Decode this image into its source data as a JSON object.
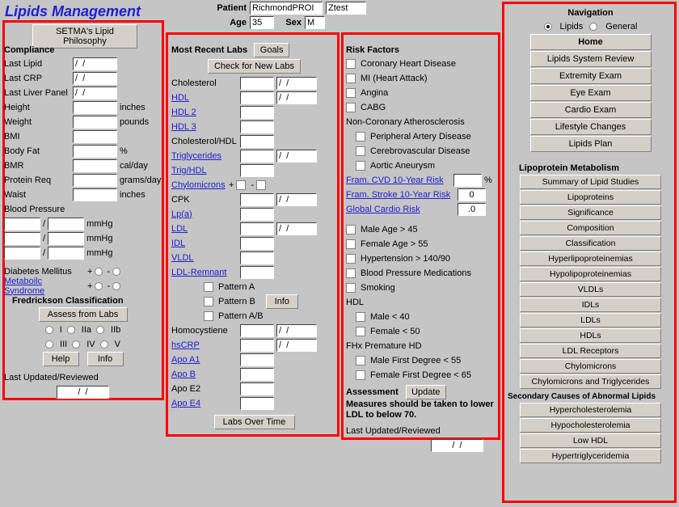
{
  "title": "Lipids Management",
  "patient": {
    "label": "Patient",
    "last": "RichmondPROI",
    "first": "Ztest",
    "ageLbl": "Age",
    "age": "35",
    "sexLbl": "Sex",
    "sex": "M"
  },
  "philosophyBtn": "SETMA's Lipid Philosophy",
  "compliance": {
    "h": "Compliance",
    "lastLipid": "Last Lipid",
    "lastLipidV": "/  /",
    "lastCRP": "Last CRP",
    "lastCRPV": "/  /",
    "lastLiver": "Last Liver Panel",
    "lastLiverV": "/  /",
    "height": "Height",
    "heightU": "inches",
    "weight": "Weight",
    "weightU": "pounds",
    "bmi": "BMI",
    "bodyFat": "Body Fat",
    "bodyFatU": "%",
    "bmr": "BMR",
    "bmrU": "cal/day",
    "protein": "Protein Req",
    "proteinU": "grams/day",
    "waist": "Waist",
    "waistU": "inches",
    "bp": "Blood Pressure",
    "bpU": "mmHg",
    "dm": "Diabetes Mellitus",
    "ms": "Metaboilc Syndrome",
    "fred": "Fredrickson Classification",
    "assess": "Assess from Labs",
    "f1": "I",
    "f2": "IIa",
    "f3": "IIb",
    "f4": "III",
    "f5": "IV",
    "f6": "V",
    "help": "Help",
    "info": "Info",
    "lur": "Last Updated/Reviewed",
    "lurV": "/  /"
  },
  "labs": {
    "h": "Most Recent Labs",
    "goals": "Goals",
    "check": "Check for New Labs",
    "chol": "Cholesterol",
    "hdl": "HDL",
    "hdl2": "HDL 2",
    "hdl3": "HDL 3",
    "cholhdl": "Cholesterol/HDL",
    "trig": "Triglycerides",
    "trighdl": "Trig/HDL",
    "chylo": "Chylomicrons",
    "cpk": "CPK",
    "lpa": "Lp(a)",
    "ldl": "LDL",
    "idl": "IDL",
    "vldl": "VLDL",
    "ldlr": "LDL-Remnant",
    "pA": "Pattern A",
    "pB": "Pattern B",
    "pAB": "Pattern A/B",
    "info": "Info",
    "homo": "Homocystiene",
    "hscrp": "hsCRP",
    "apoa1": "Apo A1",
    "apob": "Apo B",
    "apoe2": "Apo E2",
    "apoe4": "Apo E4",
    "over": "Labs Over Time",
    "dateV": "/  /"
  },
  "risk": {
    "h": "Risk Factors",
    "chd": "Coronary Heart Disease",
    "mi": "MI (Heart Attack)",
    "ang": "Angina",
    "cabg": "CABG",
    "nca": "Non-Coronary Atherosclerosis",
    "pad": "Peripheral Artery Disease",
    "cvd": "Cerebrovascular Disease",
    "aa": "Aortic Aneurysm",
    "framC": "Fram. CVD 10-Year Risk",
    "framS": "Fram. Stroke 10-Year Risk",
    "framSV": "0",
    "gcr": "Global Cardio Risk",
    "gcrV": ".0",
    "pct": "%",
    "m45": "Male Age > 45",
    "f55": "Female Age > 55",
    "htn": "Hypertension > 140/90",
    "bpm": "Blood Pressure Medications",
    "smk": "Smoking",
    "hdl": "HDL",
    "m40": "Male < 40",
    "f50": "Female < 50",
    "fhx": "FHx Premature HD",
    "m55": "Male First Degree < 55",
    "f65": "Female First Degree < 65",
    "assess": "Assessment",
    "update": "Update",
    "msg": "Measures should be taken to lower LDL to below 70.",
    "lur": "Last Updated/Reviewed",
    "lurV": "/  /"
  },
  "nav": {
    "h": "Navigation",
    "lip": "Lipids",
    "gen": "General",
    "home": "Home",
    "review": "Lipids System Review",
    "ext": "Extremity Exam",
    "eye": "Eye Exam",
    "cardio": "Cardio Exam",
    "life": "Lifestyle Changes",
    "plan": "Lipids Plan"
  },
  "lipo": {
    "h": "Lipoprotein Metabolism",
    "b": [
      "Summary of Lipid Studies",
      "Lipoproteins",
      "Significance",
      "Composition",
      "Classification",
      "Hyperlipoproteinemias",
      "Hypolipoproteinemias",
      "VLDLs",
      "IDLs",
      "LDLs",
      "HDLs",
      "LDL Receptors",
      "Chylomicrons",
      "Chylomicrons and Triglycerides"
    ],
    "sec": "Secondary Causes of Abnormal Lipids",
    "s": [
      "Hypercholesterolemia",
      "Hypocholesterolemia",
      "Low HDL",
      "Hypertriglyceridemia"
    ]
  }
}
